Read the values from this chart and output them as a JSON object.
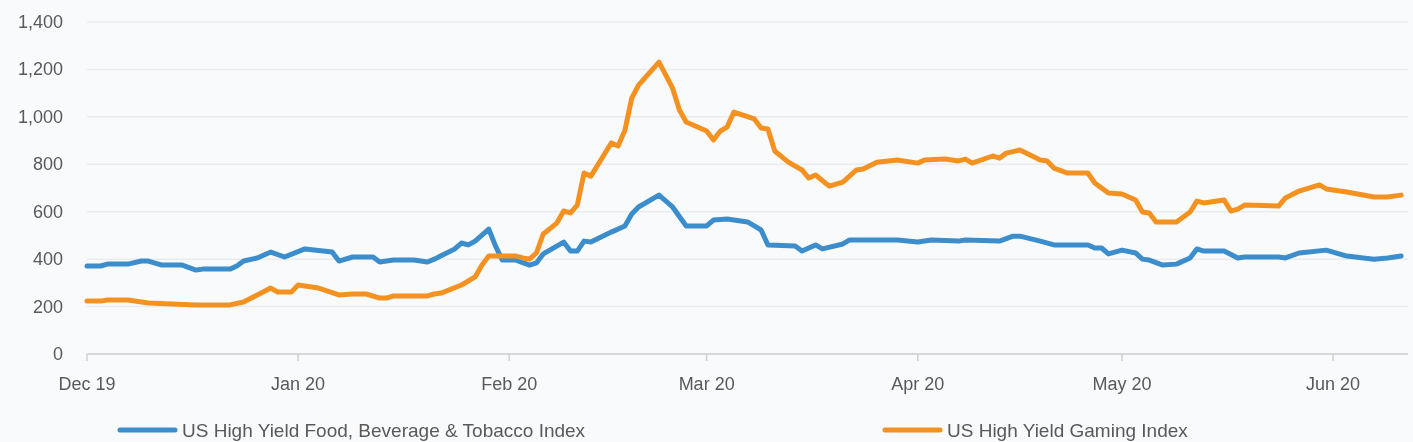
{
  "chart_data": {
    "type": "line",
    "xlim": [
      "2019-12-01",
      "2020-06-12"
    ],
    "ylim": [
      0,
      1400
    ],
    "yticks": [
      0,
      200,
      400,
      600,
      800,
      {
        "value": 1000,
        "label": "1,000"
      },
      {
        "value": 1200,
        "label": "1,200"
      },
      {
        "value": 1400,
        "label": "1,400"
      }
    ],
    "xticks": [
      {
        "value": "2019-12-01",
        "label": "Dec 19"
      },
      {
        "value": "2020-01-01",
        "label": "Jan 20"
      },
      {
        "value": "2020-02-01",
        "label": "Feb 20"
      },
      {
        "value": "2020-03-01",
        "label": "Mar 20"
      },
      {
        "value": "2020-04-01",
        "label": "Apr 20"
      },
      {
        "value": "2020-05-01",
        "label": "May 20"
      },
      {
        "value": "2020-06-01",
        "label": "Jun 20"
      }
    ],
    "grid": "y",
    "legend": "bottom",
    "marker": "none",
    "line_style": "solid",
    "series": [
      {
        "name": "US High Yield Food, Beverage & Tobacco Index",
        "color": "#3c8dcb",
        "x": [
          "2019-12-01",
          "2019-12-03",
          "2019-12-04",
          "2019-12-07",
          "2019-12-09",
          "2019-12-10",
          "2019-12-12",
          "2019-12-15",
          "2019-12-17",
          "2019-12-18",
          "2019-12-22",
          "2019-12-23",
          "2019-12-24",
          "2019-12-26",
          "2019-12-28",
          "2019-12-30",
          "2020-01-02",
          "2020-01-06",
          "2020-01-07",
          "2020-01-09",
          "2020-01-12",
          "2020-01-13",
          "2020-01-15",
          "2020-01-18",
          "2020-01-20",
          "2020-01-21",
          "2020-01-24",
          "2020-01-25",
          "2020-01-26",
          "2020-01-27",
          "2020-01-29",
          "2020-01-30",
          "2020-01-31",
          "2020-02-02",
          "2020-02-04",
          "2020-02-05",
          "2020-02-06",
          "2020-02-09",
          "2020-02-10",
          "2020-02-11",
          "2020-02-12",
          "2020-02-13",
          "2020-02-16",
          "2020-02-18",
          "2020-02-19",
          "2020-02-20",
          "2020-02-23",
          "2020-02-25",
          "2020-02-27",
          "2020-03-01",
          "2020-03-02",
          "2020-03-04",
          "2020-03-07",
          "2020-03-08",
          "2020-03-09",
          "2020-03-10",
          "2020-03-14",
          "2020-03-15",
          "2020-03-17",
          "2020-03-18",
          "2020-03-21",
          "2020-03-22",
          "2020-03-25",
          "2020-03-29",
          "2020-04-01",
          "2020-04-03",
          "2020-04-07",
          "2020-04-08",
          "2020-04-13",
          "2020-04-15",
          "2020-04-16",
          "2020-04-19",
          "2020-04-21",
          "2020-04-26",
          "2020-04-27",
          "2020-04-28",
          "2020-04-29",
          "2020-05-01",
          "2020-05-03",
          "2020-05-04",
          "2020-05-05",
          "2020-05-07",
          "2020-05-09",
          "2020-05-11",
          "2020-05-12",
          "2020-05-13",
          "2020-05-16",
          "2020-05-18",
          "2020-05-19",
          "2020-05-24",
          "2020-05-25",
          "2020-05-27",
          "2020-05-31",
          "2020-06-03",
          "2020-06-07",
          "2020-06-09",
          "2020-06-11"
        ],
        "values": [
          371,
          371,
          379,
          379,
          392,
          392,
          375,
          375,
          354,
          358,
          358,
          371,
          392,
          405,
          430,
          409,
          443,
          430,
          392,
          409,
          409,
          388,
          396,
          396,
          388,
          400,
          443,
          468,
          460,
          476,
          527,
          455,
          396,
          396,
          375,
          384,
          422,
          472,
          434,
          434,
          476,
          472,
          514,
          540,
          590,
          620,
          670,
          620,
          540,
          540,
          565,
          569,
          557,
          540,
          523,
          460,
          455,
          434,
          460,
          443,
          464,
          481,
          481,
          481,
          472,
          481,
          476,
          481,
          476,
          497,
          497,
          476,
          460,
          460,
          447,
          447,
          422,
          438,
          426,
          400,
          396,
          375,
          379,
          405,
          443,
          434,
          434,
          405,
          409,
          409,
          405,
          426,
          438,
          413,
          400,
          405,
          413
        ]
      },
      {
        "name": "US High Yield Gaming Index",
        "color": "#f39220",
        "x": [
          "2019-12-01",
          "2019-12-03",
          "2019-12-04",
          "2019-12-07",
          "2019-12-10",
          "2019-12-17",
          "2019-12-18",
          "2019-12-22",
          "2019-12-24",
          "2019-12-26",
          "2019-12-28",
          "2019-12-29",
          "2019-12-31",
          "2020-01-01",
          "2020-01-04",
          "2020-01-07",
          "2020-01-09",
          "2020-01-11",
          "2020-01-13",
          "2020-01-14",
          "2020-01-15",
          "2020-01-20",
          "2020-01-21",
          "2020-01-22",
          "2020-01-25",
          "2020-01-27",
          "2020-01-28",
          "2020-01-29",
          "2020-02-02",
          "2020-02-03",
          "2020-02-04",
          "2020-02-05",
          "2020-02-06",
          "2020-02-08",
          "2020-02-09",
          "2020-02-10",
          "2020-02-11",
          "2020-02-12",
          "2020-02-13",
          "2020-02-16",
          "2020-02-17",
          "2020-02-18",
          "2020-02-19",
          "2020-02-20",
          "2020-02-23",
          "2020-02-25",
          "2020-02-26",
          "2020-02-27",
          "2020-03-01",
          "2020-03-02",
          "2020-03-03",
          "2020-03-04",
          "2020-03-05",
          "2020-03-08",
          "2020-03-09",
          "2020-03-10",
          "2020-03-11",
          "2020-03-13",
          "2020-03-15",
          "2020-03-16",
          "2020-03-17",
          "2020-03-19",
          "2020-03-21",
          "2020-03-23",
          "2020-03-24",
          "2020-03-26",
          "2020-03-29",
          "2020-04-01",
          "2020-04-02",
          "2020-04-05",
          "2020-04-07",
          "2020-04-08",
          "2020-04-09",
          "2020-04-12",
          "2020-04-13",
          "2020-04-14",
          "2020-04-16",
          "2020-04-19",
          "2020-04-20",
          "2020-04-21",
          "2020-04-23",
          "2020-04-26",
          "2020-04-27",
          "2020-04-29",
          "2020-05-01",
          "2020-05-03",
          "2020-05-04",
          "2020-05-05",
          "2020-05-06",
          "2020-05-09",
          "2020-05-11",
          "2020-05-12",
          "2020-05-13",
          "2020-05-16",
          "2020-05-17",
          "2020-05-18",
          "2020-05-19",
          "2020-05-24",
          "2020-05-25",
          "2020-05-27",
          "2020-05-30",
          "2020-05-31",
          "2020-06-03",
          "2020-06-07",
          "2020-06-09",
          "2020-06-11"
        ],
        "values": [
          223,
          223,
          228,
          228,
          215,
          207,
          207,
          207,
          219,
          249,
          278,
          261,
          261,
          291,
          278,
          249,
          253,
          253,
          236,
          236,
          245,
          245,
          253,
          257,
          291,
          325,
          375,
          413,
          413,
          405,
          400,
          426,
          506,
          552,
          603,
          595,
          628,
          763,
          750,
          890,
          877,
          944,
          1079,
          1134,
          1231,
          1121,
          1029,
          978,
          940,
          902,
          940,
          957,
          1020,
          991,
          953,
          949,
          856,
          809,
          776,
          742,
          755,
          708,
          725,
          776,
          780,
          809,
          818,
          805,
          818,
          822,
          814,
          822,
          805,
          835,
          826,
          847,
          860,
          818,
          814,
          784,
          763,
          763,
          721,
          679,
          675,
          649,
          599,
          595,
          557,
          557,
          599,
          645,
          637,
          649,
          603,
          611,
          628,
          624,
          658,
          687,
          713,
          696,
          683,
          662,
          662,
          670
        ]
      }
    ]
  }
}
